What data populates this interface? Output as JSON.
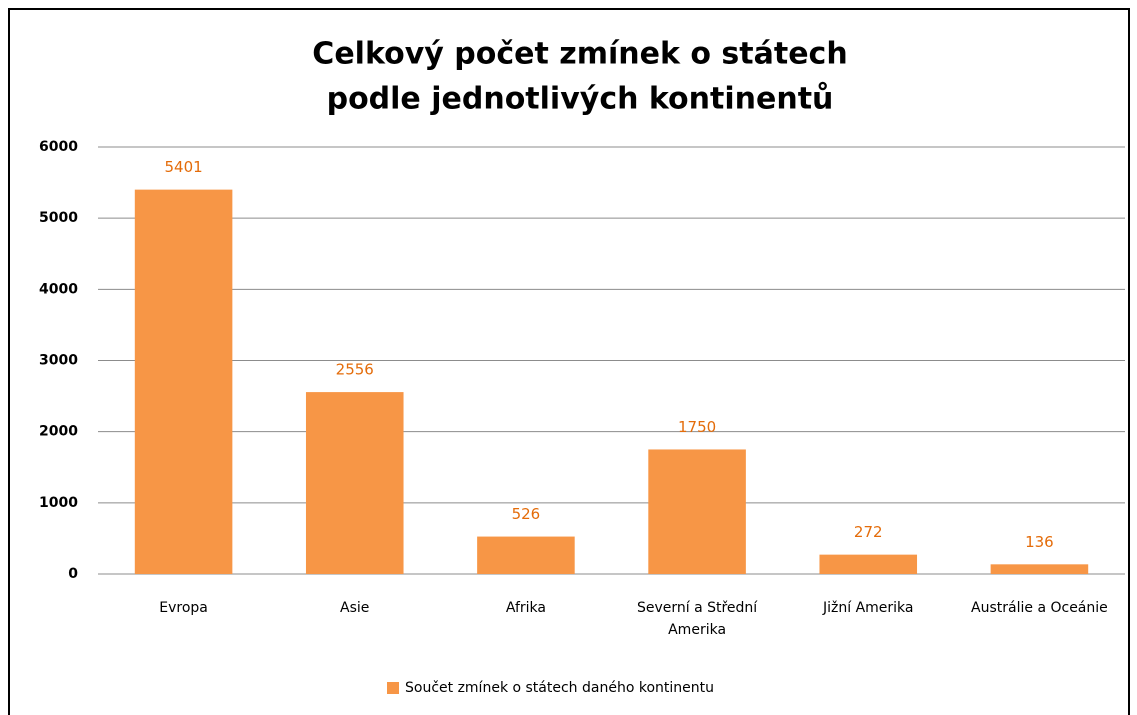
{
  "chart_data": {
    "type": "bar",
    "title": [
      "Celkový počet zmínek o státech",
      "podle jednotlivých kontinentů"
    ],
    "categories": [
      "Evropa",
      "Asie",
      "Afrika",
      "Severní a Střední Amerika",
      "Jižní Amerika",
      "Austrálie a Oceánie"
    ],
    "series": [
      {
        "name": "Součet zmínek o státech daného kontinentu",
        "color": "#f79646",
        "values": [
          5401,
          2556,
          526,
          1750,
          272,
          136
        ]
      }
    ],
    "ylim": [
      0,
      6000
    ],
    "yticks": [
      0,
      1000,
      2000,
      3000,
      4000,
      5000,
      6000
    ],
    "grid": true,
    "legend": "bottom"
  }
}
